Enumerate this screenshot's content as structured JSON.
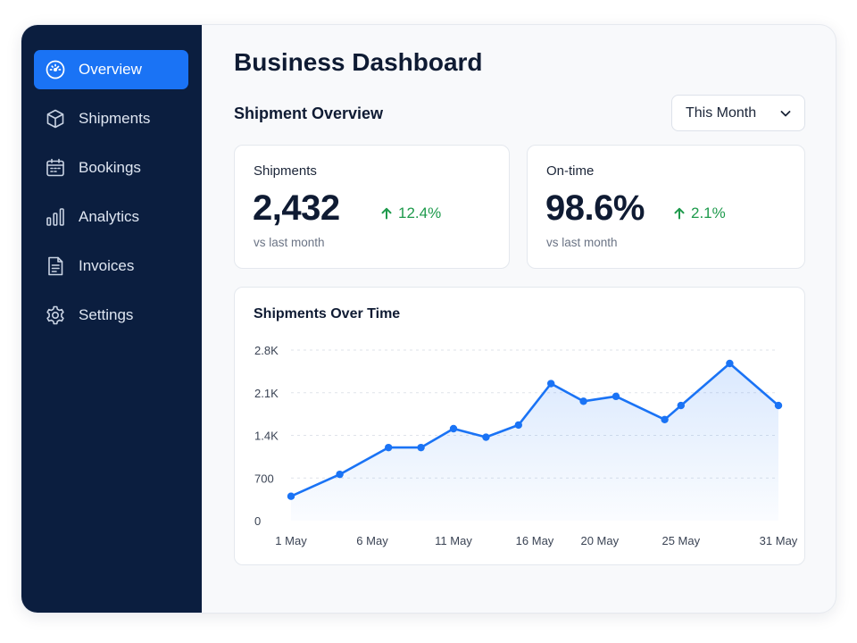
{
  "sidebar": {
    "items": [
      {
        "label": "Overview",
        "icon": "gauge-icon",
        "active": true
      },
      {
        "label": "Shipments",
        "icon": "box-icon",
        "active": false
      },
      {
        "label": "Bookings",
        "icon": "calendar-icon",
        "active": false
      },
      {
        "label": "Analytics",
        "icon": "bar-chart-icon",
        "active": false
      },
      {
        "label": "Invoices",
        "icon": "document-icon",
        "active": false
      },
      {
        "label": "Settings",
        "icon": "gear-icon",
        "active": false
      }
    ]
  },
  "header": {
    "title": "Business Dashboard",
    "section_title": "Shipment Overview",
    "period_select": {
      "value": "This Month",
      "icon": "chevron-down-icon"
    }
  },
  "stats": {
    "shipments": {
      "label": "Shipments",
      "value": "2,432",
      "delta": "12.4%",
      "sub": "vs last month"
    },
    "ontime": {
      "label": "On-time",
      "value": "98.6%",
      "delta": "2.1%",
      "sub": "vs last month"
    }
  },
  "colors": {
    "sidebar_bg": "#0b1e3f",
    "accent": "#1a73f5",
    "positive": "#1e9a4c",
    "line": "#1a73f5"
  },
  "chart_data": {
    "type": "area",
    "title": "Shipments Over Time",
    "xlabel": "",
    "ylabel": "",
    "ylim": [
      0,
      2800
    ],
    "y_ticks": [
      "0",
      "700",
      "1.4K",
      "2.1K",
      "2.8K"
    ],
    "x_tick_labels": [
      "1 May",
      "6 May",
      "11 May",
      "16 May",
      "20 May",
      "25 May",
      "31 May"
    ],
    "x_tick_days": [
      1,
      6,
      11,
      16,
      20,
      25,
      31
    ],
    "grid": "horizontal-dashed",
    "x": [
      1,
      4,
      7,
      9,
      11,
      13,
      15,
      17,
      19,
      21,
      24,
      25,
      28,
      31
    ],
    "values": [
      400,
      760,
      1200,
      1200,
      1510,
      1370,
      1570,
      2250,
      1960,
      2040,
      1660,
      1890,
      2580,
      1890
    ]
  }
}
